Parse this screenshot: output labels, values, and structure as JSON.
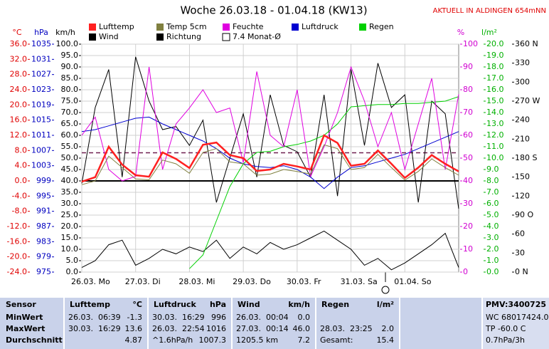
{
  "chart_data": {
    "type": "line",
    "title": "Woche 26.03.18 - 01.04.18 (KW13)",
    "station": "AKTUELL IN ALDINGEN 654mNN",
    "grid": true,
    "xlim": [
      0,
      7
    ],
    "xticks": [
      {
        "value": 0,
        "label": "26.03. Mo"
      },
      {
        "value": 1,
        "label": "27.03. Di"
      },
      {
        "value": 2,
        "label": "28.03. Mi"
      },
      {
        "value": 3,
        "label": "29.03. Do"
      },
      {
        "value": 4,
        "label": "30.03. Fr"
      },
      {
        "value": 5,
        "label": "31.03. Sa"
      },
      {
        "value": 6,
        "label": "01.04. So"
      }
    ],
    "x": [
      0,
      0.25,
      0.5,
      0.75,
      1,
      1.25,
      1.5,
      1.75,
      2,
      2.25,
      2.5,
      2.75,
      3,
      3.25,
      3.5,
      3.75,
      4,
      4.25,
      4.5,
      4.75,
      5,
      5.25,
      5.5,
      5.75,
      6,
      6.25,
      6.5,
      6.75,
      7
    ],
    "axes": {
      "temp": {
        "label": "°C",
        "color": "#e00000",
        "lim": [
          -24,
          36
        ],
        "ticks": [
          {
            "value": -24,
            "label": "-24.0"
          },
          {
            "value": -20,
            "label": "-20.0"
          },
          {
            "value": -16,
            "label": "-16.0"
          },
          {
            "value": -12,
            "label": "-12.0"
          },
          {
            "value": -8,
            "label": "-8.0"
          },
          {
            "value": -4,
            "label": "-4.0"
          },
          {
            "value": 0,
            "label": "0.0"
          },
          {
            "value": 4,
            "label": "4.0"
          },
          {
            "value": 8,
            "label": "8.0"
          },
          {
            "value": 12,
            "label": "12.0"
          },
          {
            "value": 16,
            "label": "16.0"
          },
          {
            "value": 20,
            "label": "20.0"
          },
          {
            "value": 24,
            "label": "24.0"
          },
          {
            "value": 28,
            "label": "28.0"
          },
          {
            "value": 32,
            "label": "32.0"
          },
          {
            "value": 36,
            "label": "36.0"
          }
        ]
      },
      "pressure": {
        "label": "hPa",
        "color": "#0000c0",
        "lim": [
          975,
          1035
        ],
        "ticks": [
          975,
          979,
          983,
          987,
          991,
          995,
          999,
          1003,
          1007,
          1011,
          1015,
          1019,
          1023,
          1027,
          1031,
          1035
        ]
      },
      "wind": {
        "label": "km/h",
        "color": "#000000",
        "lim": [
          0,
          100
        ],
        "ticks": [
          {
            "value": 0,
            "label": "0.0"
          },
          {
            "value": 5,
            "label": "5.0"
          },
          {
            "value": 10,
            "label": "10.0"
          },
          {
            "value": 15,
            "label": "15.0"
          },
          {
            "value": 20,
            "label": "20.0"
          },
          {
            "value": 25,
            "label": "25.0"
          },
          {
            "value": 30,
            "label": "30.0"
          },
          {
            "value": 35,
            "label": "35.0"
          },
          {
            "value": 40,
            "label": "40.0"
          },
          {
            "value": 45,
            "label": "45.0"
          },
          {
            "value": 50,
            "label": "50.0"
          },
          {
            "value": 55,
            "label": "55.0"
          },
          {
            "value": 60,
            "label": "60.0"
          },
          {
            "value": 65,
            "label": "65.0"
          },
          {
            "value": 70,
            "label": "70.0"
          },
          {
            "value": 75,
            "label": "75.0"
          },
          {
            "value": 80,
            "label": "80.0"
          },
          {
            "value": 85,
            "label": "85.0"
          },
          {
            "value": 90,
            "label": "90.0"
          },
          {
            "value": 95,
            "label": "95.0"
          },
          {
            "value": 100,
            "label": "100.0"
          }
        ]
      },
      "humidity": {
        "label": "%",
        "color": "#d000d0",
        "lim": [
          0,
          100
        ],
        "ticks": [
          0,
          10,
          20,
          30,
          40,
          50,
          60,
          70,
          80,
          90,
          100
        ]
      },
      "rain": {
        "label": "l/m²",
        "color": "#00b000",
        "lim": [
          0,
          20
        ],
        "ticks": [
          {
            "value": 0,
            "label": "0.0"
          },
          {
            "value": 1,
            "label": "1.0"
          },
          {
            "value": 2,
            "label": "2.0"
          },
          {
            "value": 3,
            "label": "3.0"
          },
          {
            "value": 4,
            "label": "4.0"
          },
          {
            "value": 5,
            "label": "5.0"
          },
          {
            "value": 6,
            "label": "6.0"
          },
          {
            "value": 7,
            "label": "7.0"
          },
          {
            "value": 8,
            "label": "8.0"
          },
          {
            "value": 9,
            "label": "9.0"
          },
          {
            "value": 10,
            "label": "10.0"
          },
          {
            "value": 11,
            "label": "11.0"
          },
          {
            "value": 12,
            "label": "12.0"
          },
          {
            "value": 13,
            "label": "13.0"
          },
          {
            "value": 14,
            "label": "14.0"
          },
          {
            "value": 15,
            "label": "15.0"
          },
          {
            "value": 16,
            "label": "16.0"
          },
          {
            "value": 17,
            "label": "17.0"
          },
          {
            "value": 18,
            "label": "18.0"
          },
          {
            "value": 19,
            "label": "19.0"
          },
          {
            "value": 20,
            "label": "20.0"
          }
        ]
      },
      "direction": {
        "color": "#000000",
        "lim": [
          0,
          360
        ],
        "ticks": [
          {
            "value": 0,
            "label": "0 N"
          },
          30,
          60,
          {
            "value": 90,
            "label": "90 O"
          },
          120,
          150,
          {
            "value": 180,
            "label": "180 S"
          },
          210,
          240,
          {
            "value": 270,
            "label": "270 W"
          },
          300,
          330,
          {
            "value": 360,
            "label": "360 N"
          }
        ]
      }
    },
    "series": [
      {
        "name": "Lufttemp",
        "color": "#ff2020",
        "axis": "temp",
        "values": [
          -0.2,
          1.0,
          9.0,
          4.3,
          1.5,
          1.1,
          7.5,
          5.8,
          3.4,
          9.5,
          10.1,
          6.8,
          6.0,
          2.6,
          3.0,
          4.5,
          3.8,
          3.0,
          12.0,
          10.0,
          4.0,
          4.5,
          8.0,
          4.5,
          0.8,
          3.5,
          6.8,
          4.5,
          2.5
        ]
      },
      {
        "name": "Temp 5cm",
        "color": "#808040",
        "axis": "temp",
        "values": [
          -1.0,
          0.0,
          6.5,
          3.5,
          0.5,
          0.3,
          5.5,
          4.5,
          2.0,
          7.5,
          8.5,
          5.0,
          4.5,
          1.5,
          1.8,
          3.0,
          2.5,
          1.8,
          9.5,
          8.5,
          3.0,
          3.5,
          7.0,
          3.5,
          0.2,
          2.5,
          5.8,
          3.5,
          1.5
        ]
      },
      {
        "name": "Feuchte",
        "color": "#e000e0",
        "axis": "humidity",
        "values": [
          60,
          68,
          45,
          40,
          42,
          90,
          45,
          65,
          72,
          80,
          70,
          72,
          48,
          88,
          60,
          55,
          80,
          42,
          55,
          70,
          90,
          75,
          55,
          70,
          45,
          65,
          85,
          45,
          78
        ]
      },
      {
        "name": "Luftdruck",
        "color": "#0000d0",
        "axis": "pressure",
        "values": [
          1012,
          1012.5,
          1013.5,
          1014.5,
          1015.5,
          1015.8,
          1014,
          1012.5,
          1011,
          1009.5,
          1007.5,
          1005,
          1003.5,
          1002.8,
          1002.5,
          1003,
          1002,
          1000,
          997,
          1000,
          1002.5,
          1003,
          1004,
          1005,
          1006,
          1007.5,
          1009,
          1010.5,
          1012
        ]
      },
      {
        "name": "Regen",
        "color": "#00d000",
        "axis": "rain",
        "values": [
          null,
          null,
          null,
          null,
          null,
          null,
          null,
          null,
          0.3,
          1.5,
          4.5,
          7.5,
          9.5,
          10.5,
          10.6,
          11.0,
          11.2,
          11.5,
          12.0,
          13.0,
          14.5,
          14.6,
          14.7,
          14.7,
          14.8,
          14.8,
          14.9,
          15.0,
          15.4
        ]
      },
      {
        "name": "Wind",
        "color": "#000000",
        "axis": "wind",
        "values": [
          2,
          5,
          12,
          14,
          3,
          6,
          10,
          8,
          11,
          9,
          14,
          6,
          11,
          8,
          13,
          10,
          12,
          15,
          18,
          14,
          10,
          3,
          6,
          1,
          4,
          8,
          12,
          17,
          2
        ]
      },
      {
        "name": "Richtung",
        "color": "#000000",
        "axis": "direction",
        "values": [
          140,
          260,
          320,
          150,
          340,
          270,
          225,
          230,
          200,
          240,
          110,
          180,
          250,
          150,
          280,
          200,
          190,
          150,
          280,
          120,
          320,
          200,
          330,
          260,
          280,
          110,
          270,
          250,
          100
        ]
      }
    ],
    "reference_line": {
      "name": "7.4 Monat-Ø",
      "value": 7.4,
      "axis": "temp",
      "color": "#702050"
    }
  },
  "table": {
    "columns": [
      {
        "title": "Sensor"
      },
      {
        "title": "Lufttemp",
        "unit": "°C"
      },
      {
        "title": "Luftdruck",
        "unit": "hPa"
      },
      {
        "title": "Wind",
        "unit": "km/h"
      },
      {
        "title": "Regen",
        "unit": "l/m²"
      }
    ],
    "extra_title": "PMV:3400725",
    "rows": [
      {
        "label": "MinWert",
        "cells": [
          {
            "time": "26.03.  06:39",
            "value": "-1.3"
          },
          {
            "time": "30.03.  16:29",
            "value": "996"
          },
          {
            "time": "26.03.  00:04",
            "value": "0.0"
          },
          {}
        ],
        "extra": "WC 68017424.0"
      },
      {
        "label": "MaxWert",
        "cells": [
          {
            "time": "30.03.  16:29",
            "value": "13.6"
          },
          {
            "time": "26.03.  22:54",
            "value": "1016"
          },
          {
            "time": "27.03.  00:14",
            "value": "46.0"
          },
          {
            "time": "28.03.  23:25",
            "value": "2.0"
          }
        ],
        "extra": "TP -60.0 C"
      },
      {
        "label": "Durchschnitt",
        "cells": [
          {
            "value": "4.87"
          },
          {
            "time": "^1.6hPa/h",
            "value": "1007.3"
          },
          {
            "time": "1205.5 km",
            "value": "7.2"
          },
          {
            "time": "Gesamt:",
            "value": "15.4"
          }
        ],
        "extra": "0.7hPa/3h"
      }
    ]
  }
}
